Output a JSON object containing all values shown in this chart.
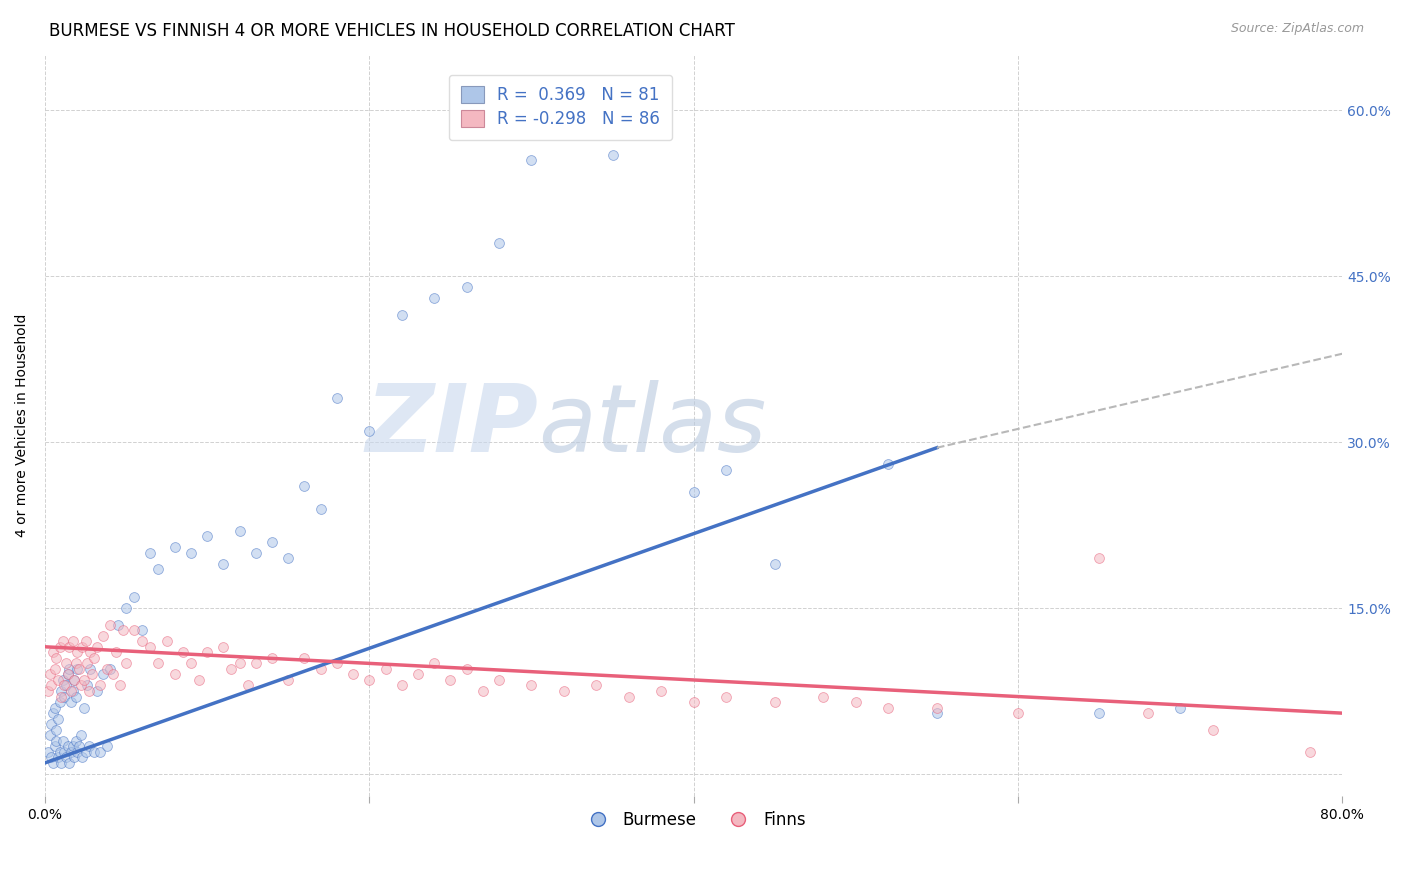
{
  "title": "BURMESE VS FINNISH 4 OR MORE VEHICLES IN HOUSEHOLD CORRELATION CHART",
  "source": "Source: ZipAtlas.com",
  "ylabel": "4 or more Vehicles in Household",
  "xlim": [
    0.0,
    0.8
  ],
  "ylim": [
    -0.02,
    0.65
  ],
  "xticks": [
    0.0,
    0.2,
    0.4,
    0.6,
    0.8
  ],
  "xticklabels": [
    "0.0%",
    "",
    "",
    "",
    "80.0%"
  ],
  "yticks": [
    0.0,
    0.15,
    0.3,
    0.45,
    0.6
  ],
  "yticklabels": [
    "",
    "15.0%",
    "30.0%",
    "45.0%",
    "60.0%"
  ],
  "legend_labels": [
    "Burmese",
    "Finns"
  ],
  "burmese_color": "#aec6e8",
  "finns_color": "#f4b8c1",
  "burmese_line_color": "#4472c4",
  "finns_line_color": "#e8607a",
  "trend_ext_color": "#b8b8b8",
  "R_burmese": 0.369,
  "N_burmese": 81,
  "R_finns": -0.298,
  "N_finns": 86,
  "burmese_trend_x0": 0.0,
  "burmese_trend_y0": 0.01,
  "burmese_trend_x1": 0.55,
  "burmese_trend_y1": 0.295,
  "burmese_trend_ext_x1": 0.8,
  "burmese_trend_ext_y1": 0.38,
  "finns_trend_x0": 0.0,
  "finns_trend_y0": 0.115,
  "finns_trend_x1": 0.8,
  "finns_trend_y1": 0.055,
  "burmese_x": [
    0.002,
    0.003,
    0.004,
    0.004,
    0.005,
    0.005,
    0.006,
    0.006,
    0.007,
    0.007,
    0.008,
    0.008,
    0.009,
    0.009,
    0.01,
    0.01,
    0.011,
    0.011,
    0.012,
    0.012,
    0.013,
    0.013,
    0.014,
    0.014,
    0.015,
    0.015,
    0.016,
    0.016,
    0.017,
    0.017,
    0.018,
    0.018,
    0.019,
    0.019,
    0.02,
    0.02,
    0.021,
    0.022,
    0.023,
    0.024,
    0.025,
    0.026,
    0.027,
    0.028,
    0.03,
    0.032,
    0.034,
    0.036,
    0.038,
    0.04,
    0.045,
    0.05,
    0.055,
    0.06,
    0.065,
    0.07,
    0.08,
    0.09,
    0.1,
    0.11,
    0.12,
    0.13,
    0.14,
    0.15,
    0.16,
    0.17,
    0.18,
    0.2,
    0.22,
    0.24,
    0.26,
    0.28,
    0.3,
    0.35,
    0.4,
    0.42,
    0.45,
    0.52,
    0.55,
    0.65,
    0.7
  ],
  "burmese_y": [
    0.02,
    0.035,
    0.015,
    0.045,
    0.01,
    0.055,
    0.025,
    0.06,
    0.03,
    0.04,
    0.015,
    0.05,
    0.02,
    0.065,
    0.01,
    0.075,
    0.03,
    0.085,
    0.02,
    0.07,
    0.015,
    0.08,
    0.025,
    0.09,
    0.01,
    0.095,
    0.02,
    0.065,
    0.025,
    0.075,
    0.015,
    0.085,
    0.03,
    0.07,
    0.02,
    0.095,
    0.025,
    0.035,
    0.015,
    0.06,
    0.02,
    0.08,
    0.025,
    0.095,
    0.02,
    0.075,
    0.02,
    0.09,
    0.025,
    0.095,
    0.135,
    0.15,
    0.16,
    0.13,
    0.2,
    0.185,
    0.205,
    0.2,
    0.215,
    0.19,
    0.22,
    0.2,
    0.21,
    0.195,
    0.26,
    0.24,
    0.34,
    0.31,
    0.415,
    0.43,
    0.44,
    0.48,
    0.555,
    0.56,
    0.255,
    0.275,
    0.19,
    0.28,
    0.055,
    0.055,
    0.06
  ],
  "finns_x": [
    0.002,
    0.003,
    0.004,
    0.005,
    0.006,
    0.007,
    0.008,
    0.009,
    0.01,
    0.011,
    0.012,
    0.013,
    0.014,
    0.015,
    0.016,
    0.017,
    0.018,
    0.019,
    0.02,
    0.021,
    0.022,
    0.023,
    0.024,
    0.025,
    0.026,
    0.027,
    0.028,
    0.029,
    0.03,
    0.032,
    0.034,
    0.036,
    0.038,
    0.04,
    0.042,
    0.044,
    0.046,
    0.048,
    0.05,
    0.055,
    0.06,
    0.065,
    0.07,
    0.075,
    0.08,
    0.085,
    0.09,
    0.095,
    0.1,
    0.11,
    0.115,
    0.12,
    0.125,
    0.13,
    0.14,
    0.15,
    0.16,
    0.17,
    0.18,
    0.19,
    0.2,
    0.21,
    0.22,
    0.23,
    0.24,
    0.25,
    0.26,
    0.27,
    0.28,
    0.3,
    0.32,
    0.34,
    0.36,
    0.38,
    0.4,
    0.42,
    0.45,
    0.48,
    0.5,
    0.52,
    0.55,
    0.6,
    0.65,
    0.68,
    0.72,
    0.78
  ],
  "finns_y": [
    0.075,
    0.09,
    0.08,
    0.11,
    0.095,
    0.105,
    0.085,
    0.115,
    0.07,
    0.12,
    0.08,
    0.1,
    0.09,
    0.115,
    0.075,
    0.12,
    0.085,
    0.1,
    0.11,
    0.095,
    0.08,
    0.115,
    0.085,
    0.12,
    0.1,
    0.075,
    0.11,
    0.09,
    0.105,
    0.115,
    0.08,
    0.125,
    0.095,
    0.135,
    0.09,
    0.11,
    0.08,
    0.13,
    0.1,
    0.13,
    0.12,
    0.115,
    0.1,
    0.12,
    0.09,
    0.11,
    0.1,
    0.085,
    0.11,
    0.115,
    0.095,
    0.1,
    0.08,
    0.1,
    0.105,
    0.085,
    0.105,
    0.095,
    0.1,
    0.09,
    0.085,
    0.095,
    0.08,
    0.09,
    0.1,
    0.085,
    0.095,
    0.075,
    0.085,
    0.08,
    0.075,
    0.08,
    0.07,
    0.075,
    0.065,
    0.07,
    0.065,
    0.07,
    0.065,
    0.06,
    0.06,
    0.055,
    0.195,
    0.055,
    0.04,
    0.02
  ],
  "watermark_zip": "ZIP",
  "watermark_atlas": "atlas",
  "background_color": "#ffffff",
  "grid_color": "#cccccc",
  "tick_label_color_right": "#4472c4",
  "title_fontsize": 12,
  "axis_label_fontsize": 10,
  "tick_fontsize": 10,
  "legend_fontsize": 12,
  "scatter_alpha": 0.55,
  "scatter_size": 50
}
